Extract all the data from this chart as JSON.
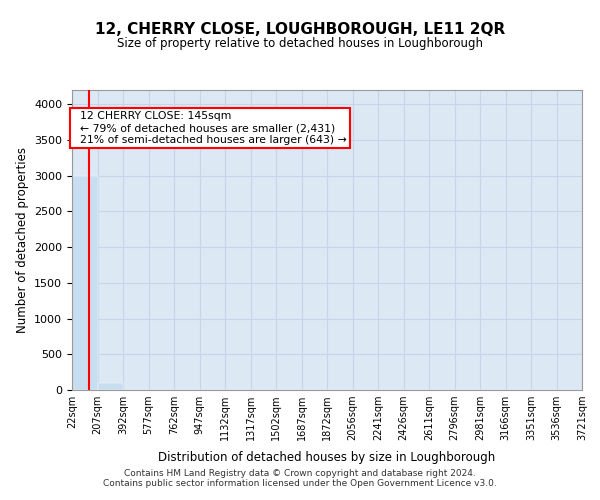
{
  "title": "12, CHERRY CLOSE, LOUGHBOROUGH, LE11 2QR",
  "subtitle": "Size of property relative to detached houses in Loughborough",
  "xlabel": "Distribution of detached houses by size in Loughborough",
  "ylabel": "Number of detached properties",
  "property_size": 145,
  "property_label": "12 CHERRY CLOSE: 145sqm",
  "line1": "← 79% of detached houses are smaller (2,431)",
  "line2": "21% of semi-detached houses are larger (643) →",
  "bar_color": "#c8ddef",
  "marker_color": "red",
  "annotation_box_color": "red",
  "grid_color": "#c8d4e8",
  "bg_color": "#dce8f4",
  "ylim": [
    0,
    4200
  ],
  "yticks": [
    0,
    500,
    1000,
    1500,
    2000,
    2500,
    3000,
    3500,
    4000
  ],
  "bin_edges": [
    22,
    207,
    392,
    577,
    762,
    947,
    1132,
    1317,
    1502,
    1687,
    1872,
    2056,
    2241,
    2426,
    2611,
    2796,
    2981,
    3166,
    3351,
    3536,
    3721
  ],
  "bin_labels": [
    "22sqm",
    "207sqm",
    "392sqm",
    "577sqm",
    "762sqm",
    "947sqm",
    "1132sqm",
    "1317sqm",
    "1502sqm",
    "1687sqm",
    "1872sqm",
    "2056sqm",
    "2241sqm",
    "2426sqm",
    "2611sqm",
    "2796sqm",
    "2981sqm",
    "3166sqm",
    "3351sqm",
    "3536sqm",
    "3721sqm"
  ],
  "bar_heights": [
    3000,
    100,
    5,
    2,
    1,
    1,
    1,
    0,
    0,
    0,
    1,
    0,
    0,
    0,
    0,
    0,
    0,
    0,
    0,
    0
  ],
  "footer1": "Contains HM Land Registry data © Crown copyright and database right 2024.",
  "footer2": "Contains public sector information licensed under the Open Government Licence v3.0."
}
